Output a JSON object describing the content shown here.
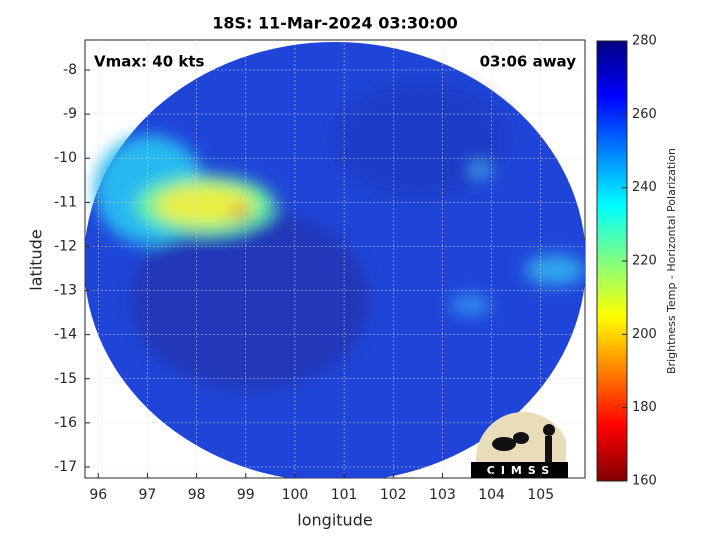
{
  "chart_data": {
    "type": "heatmap",
    "title": "18S: 11-Mar-2024 03:30:00",
    "annotations": [
      "Vmax: 40 kts",
      "03:06 away"
    ],
    "xlabel": "longitude",
    "ylabel": "latitude",
    "xlim": [
      95.73,
      105.9
    ],
    "ylim": [
      -17.25,
      -7.32
    ],
    "xticks": [
      96,
      97,
      98,
      99,
      100,
      101,
      102,
      103,
      104,
      105
    ],
    "yticks": [
      -8,
      -9,
      -10,
      -11,
      -12,
      -13,
      -14,
      -15,
      -16,
      -17
    ],
    "grid": true,
    "colorbar": {
      "label": "Brightness Temp - Horizontal Polarization",
      "lim": [
        160,
        280
      ],
      "ticks": [
        160,
        180,
        200,
        220,
        240,
        260,
        280
      ],
      "colormap": [
        "#800000",
        "#ff0000",
        "#ff8000",
        "#ffff00",
        "#80ff80",
        "#00ffff",
        "#0080ff",
        "#0000ff",
        "#000080"
      ]
    },
    "logo": "CIMSS"
  }
}
